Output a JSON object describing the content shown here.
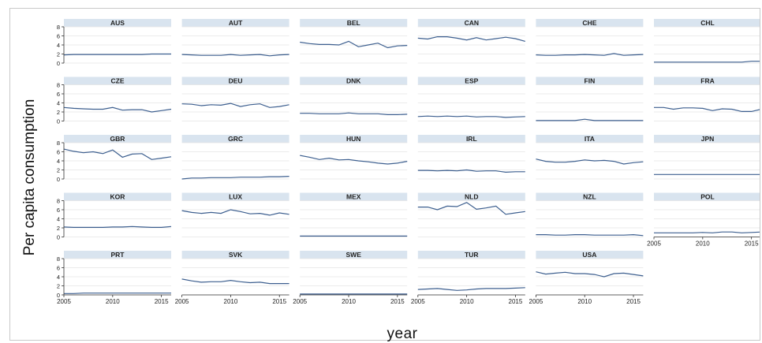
{
  "chart_data": {
    "type": "line",
    "layout": "small-multiples",
    "xlabel": "year",
    "ylabel": "Per capita consumption",
    "xlim": [
      2005,
      2016
    ],
    "ylim": [
      0,
      8
    ],
    "x_ticks": [
      2005,
      2010,
      2015
    ],
    "y_ticks": [
      0,
      2,
      4,
      6,
      8
    ],
    "grid": true,
    "years": [
      2005,
      2006,
      2007,
      2008,
      2009,
      2010,
      2011,
      2012,
      2013,
      2014,
      2015,
      2016
    ],
    "series": [
      {
        "name": "AUS",
        "values": [
          1.8,
          1.9,
          1.9,
          1.9,
          1.9,
          1.9,
          1.9,
          1.9,
          1.9,
          2.0,
          2.0,
          2.0
        ]
      },
      {
        "name": "AUT",
        "values": [
          1.9,
          1.8,
          1.7,
          1.7,
          1.7,
          1.9,
          1.7,
          1.8,
          1.9,
          1.6,
          1.8,
          1.9
        ]
      },
      {
        "name": "BEL",
        "values": [
          4.6,
          4.3,
          4.1,
          4.1,
          4.0,
          4.8,
          3.6,
          4.0,
          4.4,
          3.4,
          3.8,
          3.9
        ]
      },
      {
        "name": "CAN",
        "values": [
          5.5,
          5.3,
          5.8,
          5.8,
          5.5,
          5.1,
          5.6,
          5.1,
          5.4,
          5.7,
          5.4,
          4.8
        ]
      },
      {
        "name": "CHE",
        "values": [
          1.8,
          1.7,
          1.7,
          1.8,
          1.8,
          1.9,
          1.8,
          1.7,
          2.1,
          1.7,
          1.8,
          1.9
        ]
      },
      {
        "name": "CHL",
        "values": [
          0.2,
          0.2,
          0.2,
          0.2,
          0.2,
          0.2,
          0.2,
          0.2,
          0.2,
          0.2,
          0.4,
          0.4
        ]
      },
      {
        "name": "CZE",
        "values": [
          3.0,
          2.8,
          2.7,
          2.6,
          2.6,
          3.0,
          2.4,
          2.5,
          2.5,
          2.0,
          2.3,
          2.6
        ]
      },
      {
        "name": "DEU",
        "values": [
          3.8,
          3.7,
          3.4,
          3.6,
          3.5,
          3.9,
          3.2,
          3.6,
          3.8,
          3.0,
          3.2,
          3.6
        ]
      },
      {
        "name": "DNK",
        "values": [
          1.7,
          1.7,
          1.6,
          1.6,
          1.6,
          1.8,
          1.6,
          1.6,
          1.6,
          1.4,
          1.4,
          1.5
        ]
      },
      {
        "name": "ESP",
        "values": [
          1.0,
          1.1,
          1.0,
          1.1,
          1.0,
          1.1,
          0.9,
          1.0,
          1.0,
          0.8,
          0.9,
          1.0
        ]
      },
      {
        "name": "FIN",
        "values": [
          0.1,
          0.1,
          0.1,
          0.1,
          0.1,
          0.4,
          0.1,
          0.1,
          0.1,
          0.1,
          0.1,
          0.1
        ]
      },
      {
        "name": "FRA",
        "values": [
          3.0,
          3.0,
          2.6,
          2.9,
          2.9,
          2.8,
          2.3,
          2.7,
          2.6,
          2.1,
          2.1,
          2.6
        ]
      },
      {
        "name": "GBR",
        "values": [
          6.6,
          6.1,
          5.8,
          6.0,
          5.6,
          6.4,
          4.8,
          5.5,
          5.6,
          4.3,
          4.6,
          4.9
        ]
      },
      {
        "name": "GRC",
        "values": [
          0.0,
          0.2,
          0.2,
          0.3,
          0.3,
          0.3,
          0.4,
          0.4,
          0.4,
          0.5,
          0.5,
          0.6
        ]
      },
      {
        "name": "HUN",
        "values": [
          5.2,
          4.8,
          4.3,
          4.6,
          4.2,
          4.3,
          4.0,
          3.8,
          3.5,
          3.3,
          3.5,
          3.9
        ]
      },
      {
        "name": "IRL",
        "values": [
          1.9,
          1.9,
          1.8,
          1.9,
          1.8,
          2.0,
          1.7,
          1.8,
          1.8,
          1.5,
          1.6,
          1.6
        ]
      },
      {
        "name": "ITA",
        "values": [
          4.4,
          3.9,
          3.7,
          3.7,
          3.9,
          4.2,
          4.0,
          4.1,
          3.9,
          3.3,
          3.6,
          3.8
        ]
      },
      {
        "name": "JPN",
        "values": [
          1.0,
          1.0,
          1.0,
          1.0,
          1.0,
          1.0,
          1.0,
          1.0,
          1.0,
          1.0,
          1.0,
          1.0
        ]
      },
      {
        "name": "KOR",
        "values": [
          2.2,
          2.1,
          2.1,
          2.1,
          2.1,
          2.2,
          2.2,
          2.3,
          2.2,
          2.1,
          2.1,
          2.3
        ]
      },
      {
        "name": "LUX",
        "values": [
          5.8,
          5.4,
          5.2,
          5.4,
          5.2,
          6.0,
          5.6,
          5.1,
          5.2,
          4.8,
          5.3,
          5.0
        ]
      },
      {
        "name": "MEX",
        "values": [
          0.2,
          0.2,
          0.2,
          0.2,
          0.2,
          0.2,
          0.2,
          0.2,
          0.2,
          0.2,
          0.2,
          0.2
        ]
      },
      {
        "name": "NLD",
        "values": [
          6.6,
          6.6,
          6.0,
          6.8,
          6.7,
          7.6,
          6.1,
          6.4,
          6.8,
          5.0,
          5.3,
          5.6
        ]
      },
      {
        "name": "NZL",
        "values": [
          0.5,
          0.5,
          0.4,
          0.4,
          0.5,
          0.5,
          0.4,
          0.4,
          0.4,
          0.4,
          0.5,
          0.3
        ]
      },
      {
        "name": "POL",
        "values": [
          0.9,
          0.9,
          0.9,
          0.9,
          0.9,
          1.0,
          0.9,
          1.1,
          1.1,
          0.9,
          1.0,
          1.1
        ]
      },
      {
        "name": "PRT",
        "values": [
          0.3,
          0.3,
          0.4,
          0.4,
          0.4,
          0.4,
          0.4,
          0.4,
          0.4,
          0.4,
          0.4,
          0.4
        ]
      },
      {
        "name": "SVK",
        "values": [
          3.5,
          3.1,
          2.8,
          2.9,
          2.9,
          3.2,
          2.9,
          2.7,
          2.8,
          2.5,
          2.5,
          2.5
        ]
      },
      {
        "name": "SWE",
        "values": [
          0.2,
          0.2,
          0.2,
          0.2,
          0.2,
          0.2,
          0.2,
          0.2,
          0.2,
          0.2,
          0.2,
          0.2
        ]
      },
      {
        "name": "TUR",
        "values": [
          1.2,
          1.3,
          1.4,
          1.2,
          1.0,
          1.1,
          1.3,
          1.4,
          1.4,
          1.4,
          1.5,
          1.6
        ]
      },
      {
        "name": "USA",
        "values": [
          5.1,
          4.6,
          4.8,
          5.0,
          4.7,
          4.7,
          4.5,
          4.0,
          4.7,
          4.8,
          4.5,
          4.2
        ]
      }
    ]
  },
  "colors": {
    "line": "#3d5f8f",
    "strip": "#d9e4ef",
    "grid": "#e4e4e4",
    "axis": "#333333",
    "text": "#222222"
  }
}
